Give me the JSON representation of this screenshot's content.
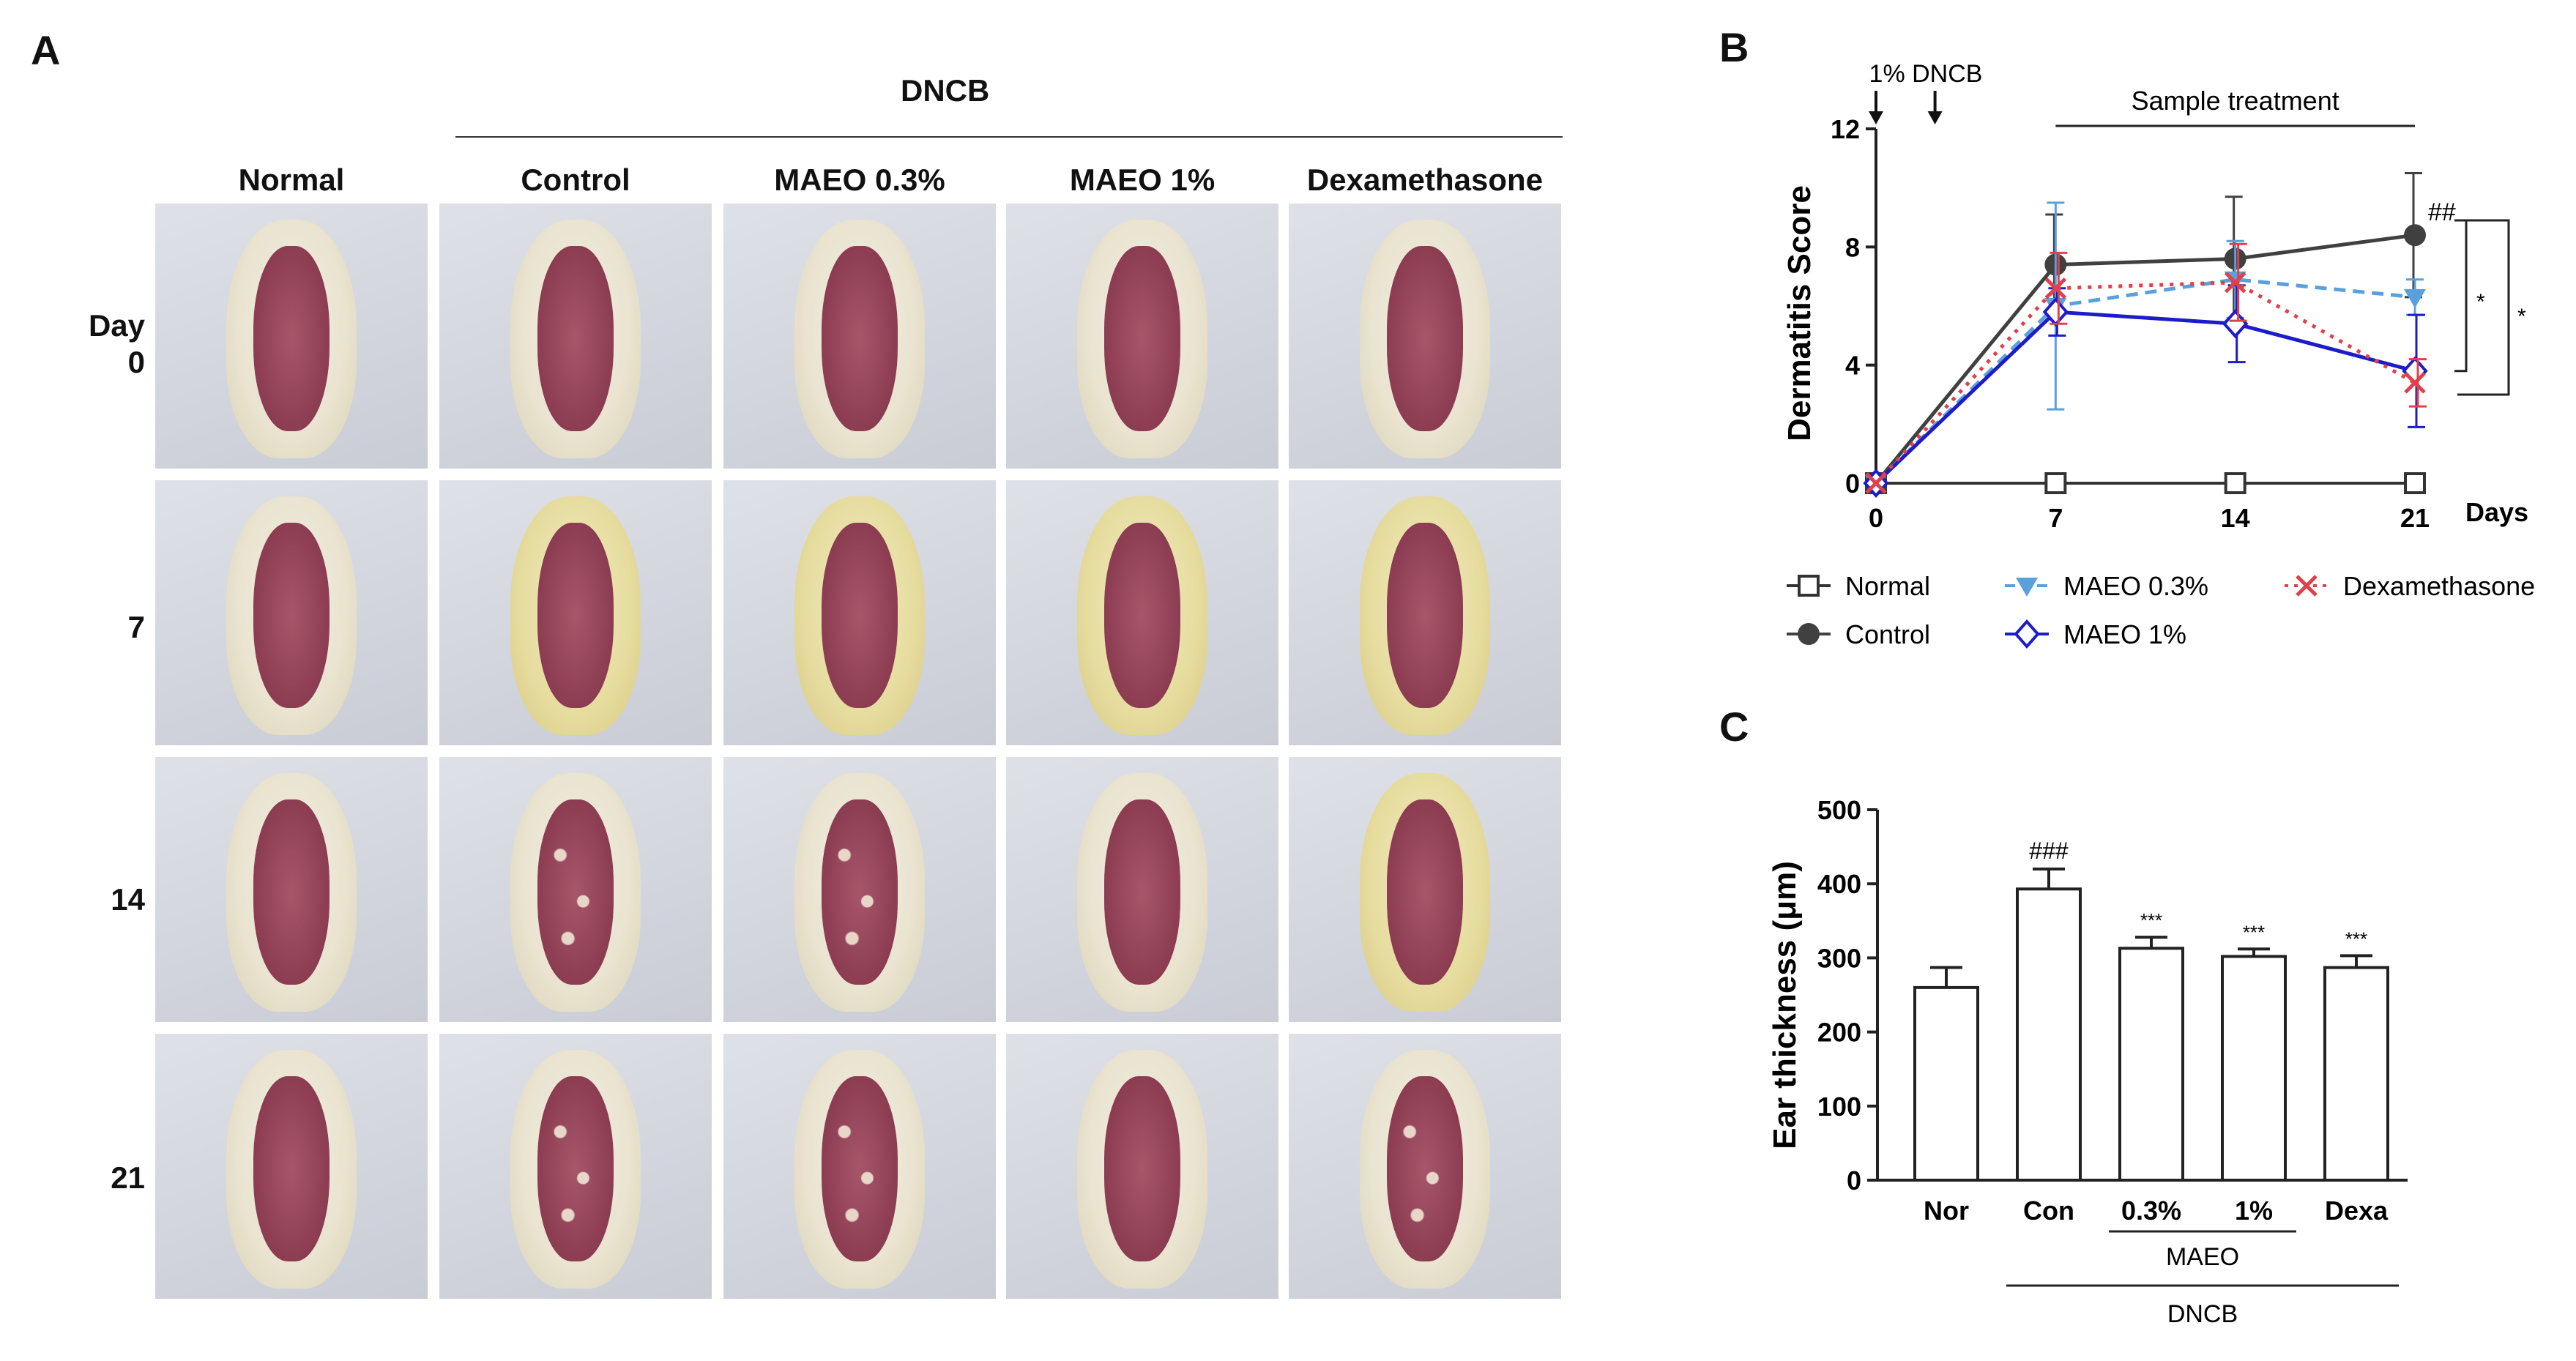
{
  "panel_a": {
    "letter": "A",
    "group_label": "DNCB",
    "columns": [
      "Normal",
      "Control",
      "MAEO 0.3%",
      "MAEO 1%",
      "Dexamethasone"
    ],
    "rows": [
      {
        "line1": "Day",
        "line2": "0"
      },
      {
        "line1": "",
        "line2": "7"
      },
      {
        "line1": "",
        "line2": "14"
      },
      {
        "line1": "",
        "line2": "21"
      }
    ]
  },
  "chart_data": [
    {
      "panel": "B",
      "type": "line",
      "ylabel": "Dermatitis Score",
      "xlabel": "Days",
      "x": [
        0,
        7,
        14,
        21
      ],
      "xlim": [
        0,
        21
      ],
      "ylim": [
        0,
        12
      ],
      "yticks": [
        0,
        4,
        8,
        12
      ],
      "grid": false,
      "series": [
        {
          "name": "Normal",
          "color": "#333333",
          "marker": "square-open",
          "values": [
            0,
            0,
            0,
            0
          ],
          "errors": [
            0,
            0,
            0,
            0
          ]
        },
        {
          "name": "Control",
          "color": "#404040",
          "marker": "circle",
          "values": [
            0,
            7.4,
            7.6,
            8.4
          ],
          "errors": [
            0,
            1.7,
            2.1,
            2.1
          ]
        },
        {
          "name": "MAEO 0.3%",
          "color": "#5aa0dc",
          "marker": "triangle-down",
          "values": [
            0,
            6.0,
            6.9,
            6.3
          ],
          "errors": [
            0,
            3.5,
            1.3,
            0.6
          ]
        },
        {
          "name": "MAEO 1%",
          "color": "#1c1cc8",
          "marker": "diamond-open",
          "values": [
            0,
            5.8,
            5.4,
            3.8
          ],
          "errors": [
            0,
            0.8,
            1.3,
            1.9
          ]
        },
        {
          "name": "Dexamethasone",
          "color": "#e0404a",
          "marker": "x",
          "values": [
            0,
            6.6,
            6.8,
            3.4
          ],
          "errors": [
            0,
            1.2,
            1.3,
            0.8
          ]
        }
      ],
      "annotations": {
        "arrow_label": "1% DNCB",
        "treatment_label": "Sample treatment",
        "control_sig": "##",
        "star_a": "*",
        "star_b": "*"
      }
    },
    {
      "panel": "C",
      "type": "bar",
      "ylabel": "Ear thickness (μm)",
      "categories": [
        "Nor",
        "Con",
        "0.3%",
        "1%",
        "Dexa"
      ],
      "values": [
        260,
        393,
        313,
        302,
        287
      ],
      "errors": [
        27,
        27,
        15,
        10,
        16
      ],
      "significance": [
        "",
        "###",
        "***",
        "***",
        "***"
      ],
      "ylim": [
        0,
        500
      ],
      "yticks": [
        0,
        100,
        200,
        300,
        400,
        500
      ],
      "group_labels": {
        "maeo": "MAEO",
        "dncb": "DNCB"
      },
      "grid": false
    }
  ],
  "panel_b_letter": "B",
  "panel_c_letter": "C"
}
